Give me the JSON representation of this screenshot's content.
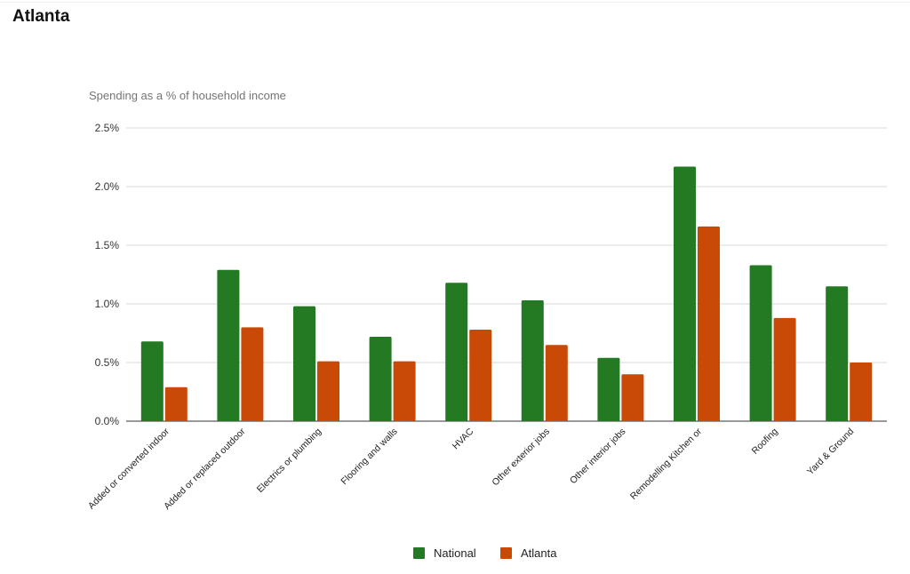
{
  "page": {
    "title": "Atlanta"
  },
  "chart_data": {
    "type": "bar",
    "title": "",
    "subtitle": "Spending as a % of household income",
    "xlabel": "",
    "ylabel": "",
    "ylim": [
      0,
      2.5
    ],
    "yticks": [
      "0.0%",
      "0.5%",
      "1.0%",
      "1.5%",
      "2.0%",
      "2.5%"
    ],
    "ytick_values": [
      0,
      0.5,
      1.0,
      1.5,
      2.0,
      2.5
    ],
    "grid": true,
    "legend_position": "bottom",
    "categories": [
      "Added or converted indoor",
      "Added or replaced outdoor",
      "Electrics or plumbing",
      "Flooring and walls",
      "HVAC",
      "Other exterior jobs",
      "Other interior jobs",
      "Remodelling Kitchen or",
      "Roofing",
      "Yard & Ground"
    ],
    "series": [
      {
        "name": "National",
        "color": "#237a23",
        "values": [
          0.68,
          1.29,
          0.98,
          0.72,
          1.18,
          1.03,
          0.54,
          2.17,
          1.33,
          1.15
        ]
      },
      {
        "name": "Atlanta",
        "color": "#c94a07",
        "values": [
          0.29,
          0.8,
          0.51,
          0.51,
          0.78,
          0.65,
          0.4,
          1.66,
          0.88,
          0.5
        ]
      }
    ]
  }
}
